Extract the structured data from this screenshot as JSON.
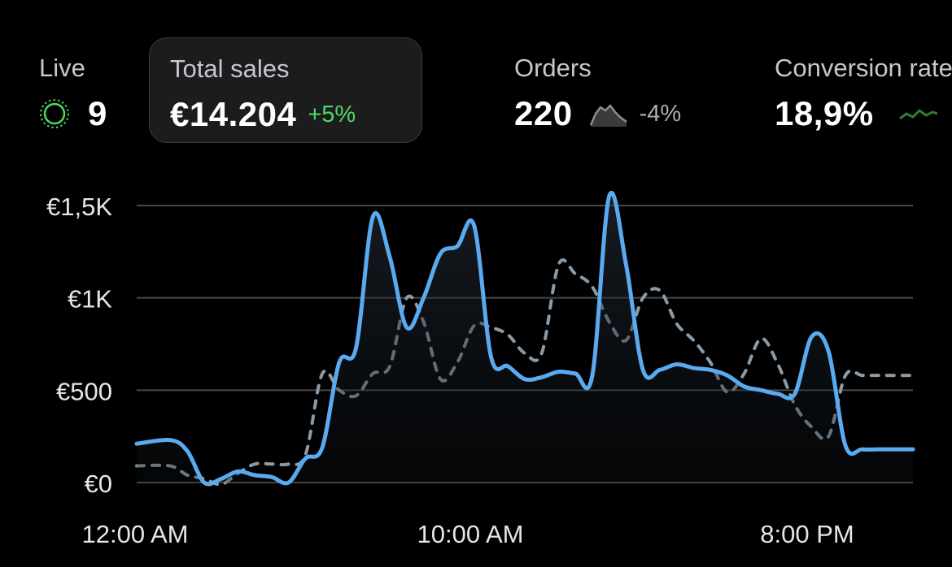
{
  "metrics": {
    "live": {
      "label": "Live",
      "value": "9",
      "icon": "live-pulse-icon",
      "color": "#4cd964"
    },
    "total_sales": {
      "label": "Total sales",
      "value": "€14.204",
      "change": "+5%",
      "change_color": "#4cd964"
    },
    "orders": {
      "label": "Orders",
      "value": "220",
      "change": "-4%",
      "change_color": "#aeaeb2",
      "icon": "sparkline-icon"
    },
    "conversion": {
      "label": "Conversion rate",
      "value": "18,9%",
      "icon": "sparkline-icon",
      "color": "#4cd964"
    }
  },
  "chart_data": {
    "type": "line",
    "y_tick_labels": [
      "€0",
      "€500",
      "€1K",
      "€1,5K"
    ],
    "y_ticks": [
      0,
      500,
      1000,
      1500
    ],
    "ylim": [
      0,
      1500
    ],
    "x_tick_labels": [
      "12:00 AM",
      "10:00 AM",
      "8:00 PM"
    ],
    "grid": true,
    "series": [
      {
        "style": "solid",
        "color": "#5aaaf0",
        "fill": true,
        "x": [
          0,
          1,
          1.5,
          2,
          2.5,
          3,
          3.5,
          4,
          4.5,
          5,
          5.5,
          6,
          6.5,
          7,
          7.5,
          8,
          8.5,
          9,
          9.5,
          10,
          10.5,
          11,
          11.5,
          12,
          12.5,
          13,
          13.5,
          14,
          14.5,
          15,
          15.5,
          16,
          16.5,
          17,
          17.5,
          18,
          18.5,
          19,
          19.5,
          20,
          20.5,
          21,
          21.5,
          22,
          22.5,
          23
        ],
        "values": [
          210,
          230,
          170,
          0,
          20,
          60,
          40,
          30,
          0,
          130,
          190,
          650,
          730,
          1440,
          1220,
          840,
          1000,
          1240,
          1280,
          1390,
          680,
          630,
          560,
          570,
          600,
          590,
          580,
          1550,
          1180,
          610,
          610,
          640,
          620,
          610,
          580,
          520,
          500,
          480,
          480,
          790,
          710,
          200,
          180,
          180,
          180,
          180
        ]
      },
      {
        "style": "dashed",
        "color": "#8a9aa6",
        "fill": false,
        "x": [
          0,
          1,
          1.5,
          2,
          2.5,
          3,
          3.5,
          4,
          4.5,
          5,
          5.5,
          6,
          6.5,
          7,
          7.5,
          8,
          8.5,
          9,
          9.5,
          10,
          10.5,
          11,
          11.5,
          12,
          12.5,
          13,
          13.5,
          14,
          14.5,
          15,
          15.5,
          16,
          16.5,
          17,
          17.5,
          18,
          18.5,
          19,
          19.5,
          20,
          20.5,
          21,
          21.5,
          22,
          22.5,
          23
        ],
        "values": [
          90,
          90,
          40,
          20,
          -10,
          50,
          100,
          100,
          100,
          150,
          590,
          500,
          470,
          590,
          630,
          1000,
          870,
          560,
          650,
          850,
          840,
          800,
          700,
          700,
          1180,
          1130,
          1060,
          870,
          770,
          1000,
          1040,
          860,
          770,
          650,
          490,
          590,
          780,
          640,
          420,
          300,
          250,
          580,
          580,
          580,
          580,
          580
        ]
      }
    ]
  }
}
